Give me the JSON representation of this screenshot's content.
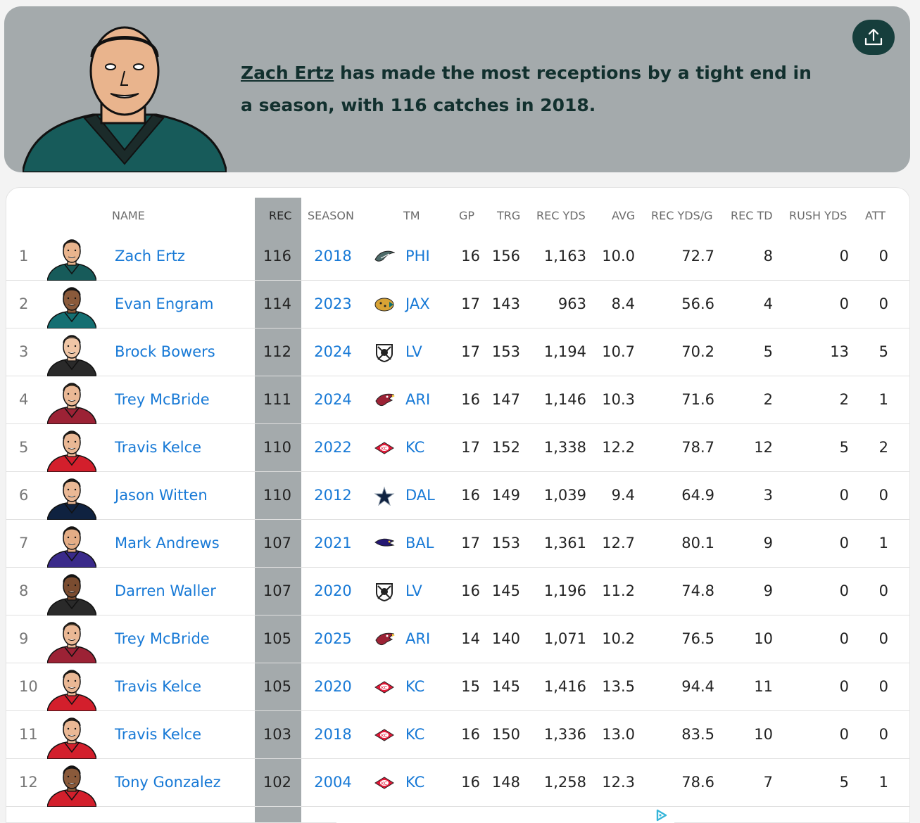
{
  "hero": {
    "player_link": "Zach Ertz",
    "headline_rest": " has made the most receptions by a tight end in a season, with 116 catches in 2018."
  },
  "columns": [
    "NAME",
    "REC",
    "SEASON",
    "TM",
    "GP",
    "TRG",
    "REC YDS",
    "AVG",
    "REC YDS/G",
    "REC TD",
    "RUSH YDS",
    "ATT"
  ],
  "rows": [
    {
      "rank": "1",
      "name": "Zach Ertz",
      "rec": "116",
      "season": "2018",
      "team": "PHI",
      "gp": "16",
      "trg": "156",
      "rec_yds": "1,163",
      "avg": "10.0",
      "yds_g": "72.7",
      "td": "8",
      "rush_yds": "0",
      "att": "0",
      "jersey": "#175b5a",
      "skin": "#e9b48d",
      "hair": "#5b3a22",
      "logo": "eagle-logo"
    },
    {
      "rank": "2",
      "name": "Evan Engram",
      "rec": "114",
      "season": "2023",
      "team": "JAX",
      "gp": "17",
      "trg": "143",
      "rec_yds": "963",
      "avg": "8.4",
      "yds_g": "56.6",
      "td": "4",
      "rush_yds": "0",
      "att": "0",
      "jersey": "#146f72",
      "skin": "#8a5a3b",
      "hair": "#1a1a1a",
      "logo": "jaguar-logo"
    },
    {
      "rank": "3",
      "name": "Brock Bowers",
      "rec": "112",
      "season": "2024",
      "team": "LV",
      "gp": "17",
      "trg": "153",
      "rec_yds": "1,194",
      "avg": "10.7",
      "yds_g": "70.2",
      "td": "5",
      "rush_yds": "13",
      "att": "5",
      "jersey": "#2a2a2a",
      "skin": "#f0c6a6",
      "hair": "#c9a27a",
      "logo": "raiders-logo"
    },
    {
      "rank": "4",
      "name": "Trey McBride",
      "rec": "111",
      "season": "2024",
      "team": "ARI",
      "gp": "16",
      "trg": "147",
      "rec_yds": "1,146",
      "avg": "10.3",
      "yds_g": "71.6",
      "td": "2",
      "rush_yds": "2",
      "att": "1",
      "jersey": "#9c2235",
      "skin": "#eab895",
      "hair": "#b8894f",
      "logo": "cardinal-logo"
    },
    {
      "rank": "5",
      "name": "Travis Kelce",
      "rec": "110",
      "season": "2022",
      "team": "KC",
      "gp": "17",
      "trg": "152",
      "rec_yds": "1,338",
      "avg": "12.2",
      "yds_g": "78.7",
      "td": "12",
      "rush_yds": "5",
      "att": "2",
      "jersey": "#d31f2c",
      "skin": "#eab895",
      "hair": "#6b4a2e",
      "logo": "chiefs-logo"
    },
    {
      "rank": "6",
      "name": "Jason Witten",
      "rec": "110",
      "season": "2012",
      "team": "DAL",
      "gp": "16",
      "trg": "149",
      "rec_yds": "1,039",
      "avg": "9.4",
      "yds_g": "64.9",
      "td": "3",
      "rush_yds": "0",
      "att": "0",
      "jersey": "#0f2240",
      "skin": "#eab895",
      "hair": "#4a3020",
      "logo": "star-logo"
    },
    {
      "rank": "7",
      "name": "Mark Andrews",
      "rec": "107",
      "season": "2021",
      "team": "BAL",
      "gp": "17",
      "trg": "153",
      "rec_yds": "1,361",
      "avg": "12.7",
      "yds_g": "80.1",
      "td": "9",
      "rush_yds": "0",
      "att": "1",
      "jersey": "#3a2a8a",
      "skin": "#e4ad86",
      "hair": "#2a1d14",
      "logo": "raven-logo"
    },
    {
      "rank": "8",
      "name": "Darren Waller",
      "rec": "107",
      "season": "2020",
      "team": "LV",
      "gp": "16",
      "trg": "145",
      "rec_yds": "1,196",
      "avg": "11.2",
      "yds_g": "74.8",
      "td": "9",
      "rush_yds": "0",
      "att": "0",
      "jersey": "#2a2a2a",
      "skin": "#7a4c30",
      "hair": "#1a1a1a",
      "logo": "raiders-logo"
    },
    {
      "rank": "9",
      "name": "Trey McBride",
      "rec": "105",
      "season": "2025",
      "team": "ARI",
      "gp": "14",
      "trg": "140",
      "rec_yds": "1,071",
      "avg": "10.2",
      "yds_g": "76.5",
      "td": "10",
      "rush_yds": "0",
      "att": "0",
      "jersey": "#9c2235",
      "skin": "#eab895",
      "hair": "#b8894f",
      "logo": "cardinal-logo"
    },
    {
      "rank": "10",
      "name": "Travis Kelce",
      "rec": "105",
      "season": "2020",
      "team": "KC",
      "gp": "15",
      "trg": "145",
      "rec_yds": "1,416",
      "avg": "13.5",
      "yds_g": "94.4",
      "td": "11",
      "rush_yds": "0",
      "att": "0",
      "jersey": "#d31f2c",
      "skin": "#eab895",
      "hair": "#6b4a2e",
      "logo": "chiefs-logo"
    },
    {
      "rank": "11",
      "name": "Travis Kelce",
      "rec": "103",
      "season": "2018",
      "team": "KC",
      "gp": "16",
      "trg": "150",
      "rec_yds": "1,336",
      "avg": "13.0",
      "yds_g": "83.5",
      "td": "10",
      "rush_yds": "0",
      "att": "0",
      "jersey": "#d31f2c",
      "skin": "#eab895",
      "hair": "#6b4a2e",
      "logo": "chiefs-logo"
    },
    {
      "rank": "12",
      "name": "Tony Gonzalez",
      "rec": "102",
      "season": "2004",
      "team": "KC",
      "gp": "16",
      "trg": "148",
      "rec_yds": "1,258",
      "avg": "12.3",
      "yds_g": "78.6",
      "td": "7",
      "rush_yds": "5",
      "att": "1",
      "jersey": "#d31f2c",
      "skin": "#8a5a3b",
      "hair": "#1a1a1a",
      "logo": "chiefs-logo"
    }
  ],
  "icons": {
    "share": "share-upload-icon",
    "ad": "ad-choices-icon"
  }
}
